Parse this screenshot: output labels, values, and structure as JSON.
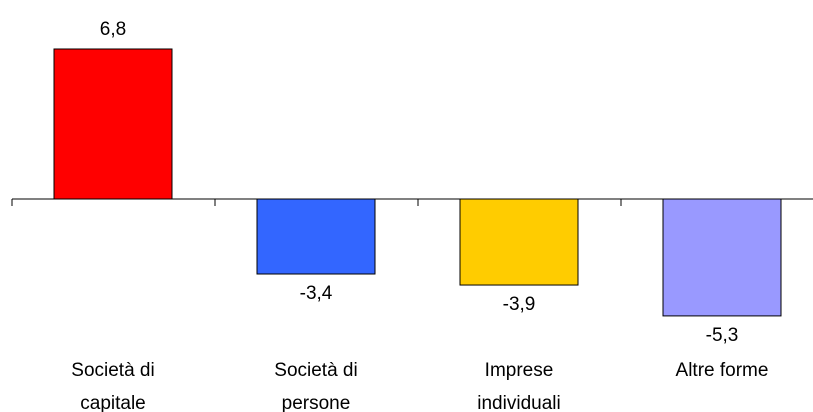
{
  "chart_data": {
    "type": "bar",
    "categories": [
      [
        "Società di",
        "capitale"
      ],
      [
        "Società di",
        "persone"
      ],
      [
        "Imprese",
        "individuali"
      ],
      [
        "Altre forme"
      ]
    ],
    "values": [
      6.8,
      -3.4,
      -3.9,
      -5.3
    ],
    "value_labels": [
      "6,8",
      "-3,4",
      "-3,9",
      "-5,3"
    ],
    "colors": [
      "#ff0000",
      "#3366ff",
      "#ffcc00",
      "#9999ff"
    ],
    "title": "",
    "xlabel": "",
    "ylabel": "",
    "ylim": [
      -5.3,
      6.8
    ],
    "grid": false,
    "legend": "none"
  }
}
